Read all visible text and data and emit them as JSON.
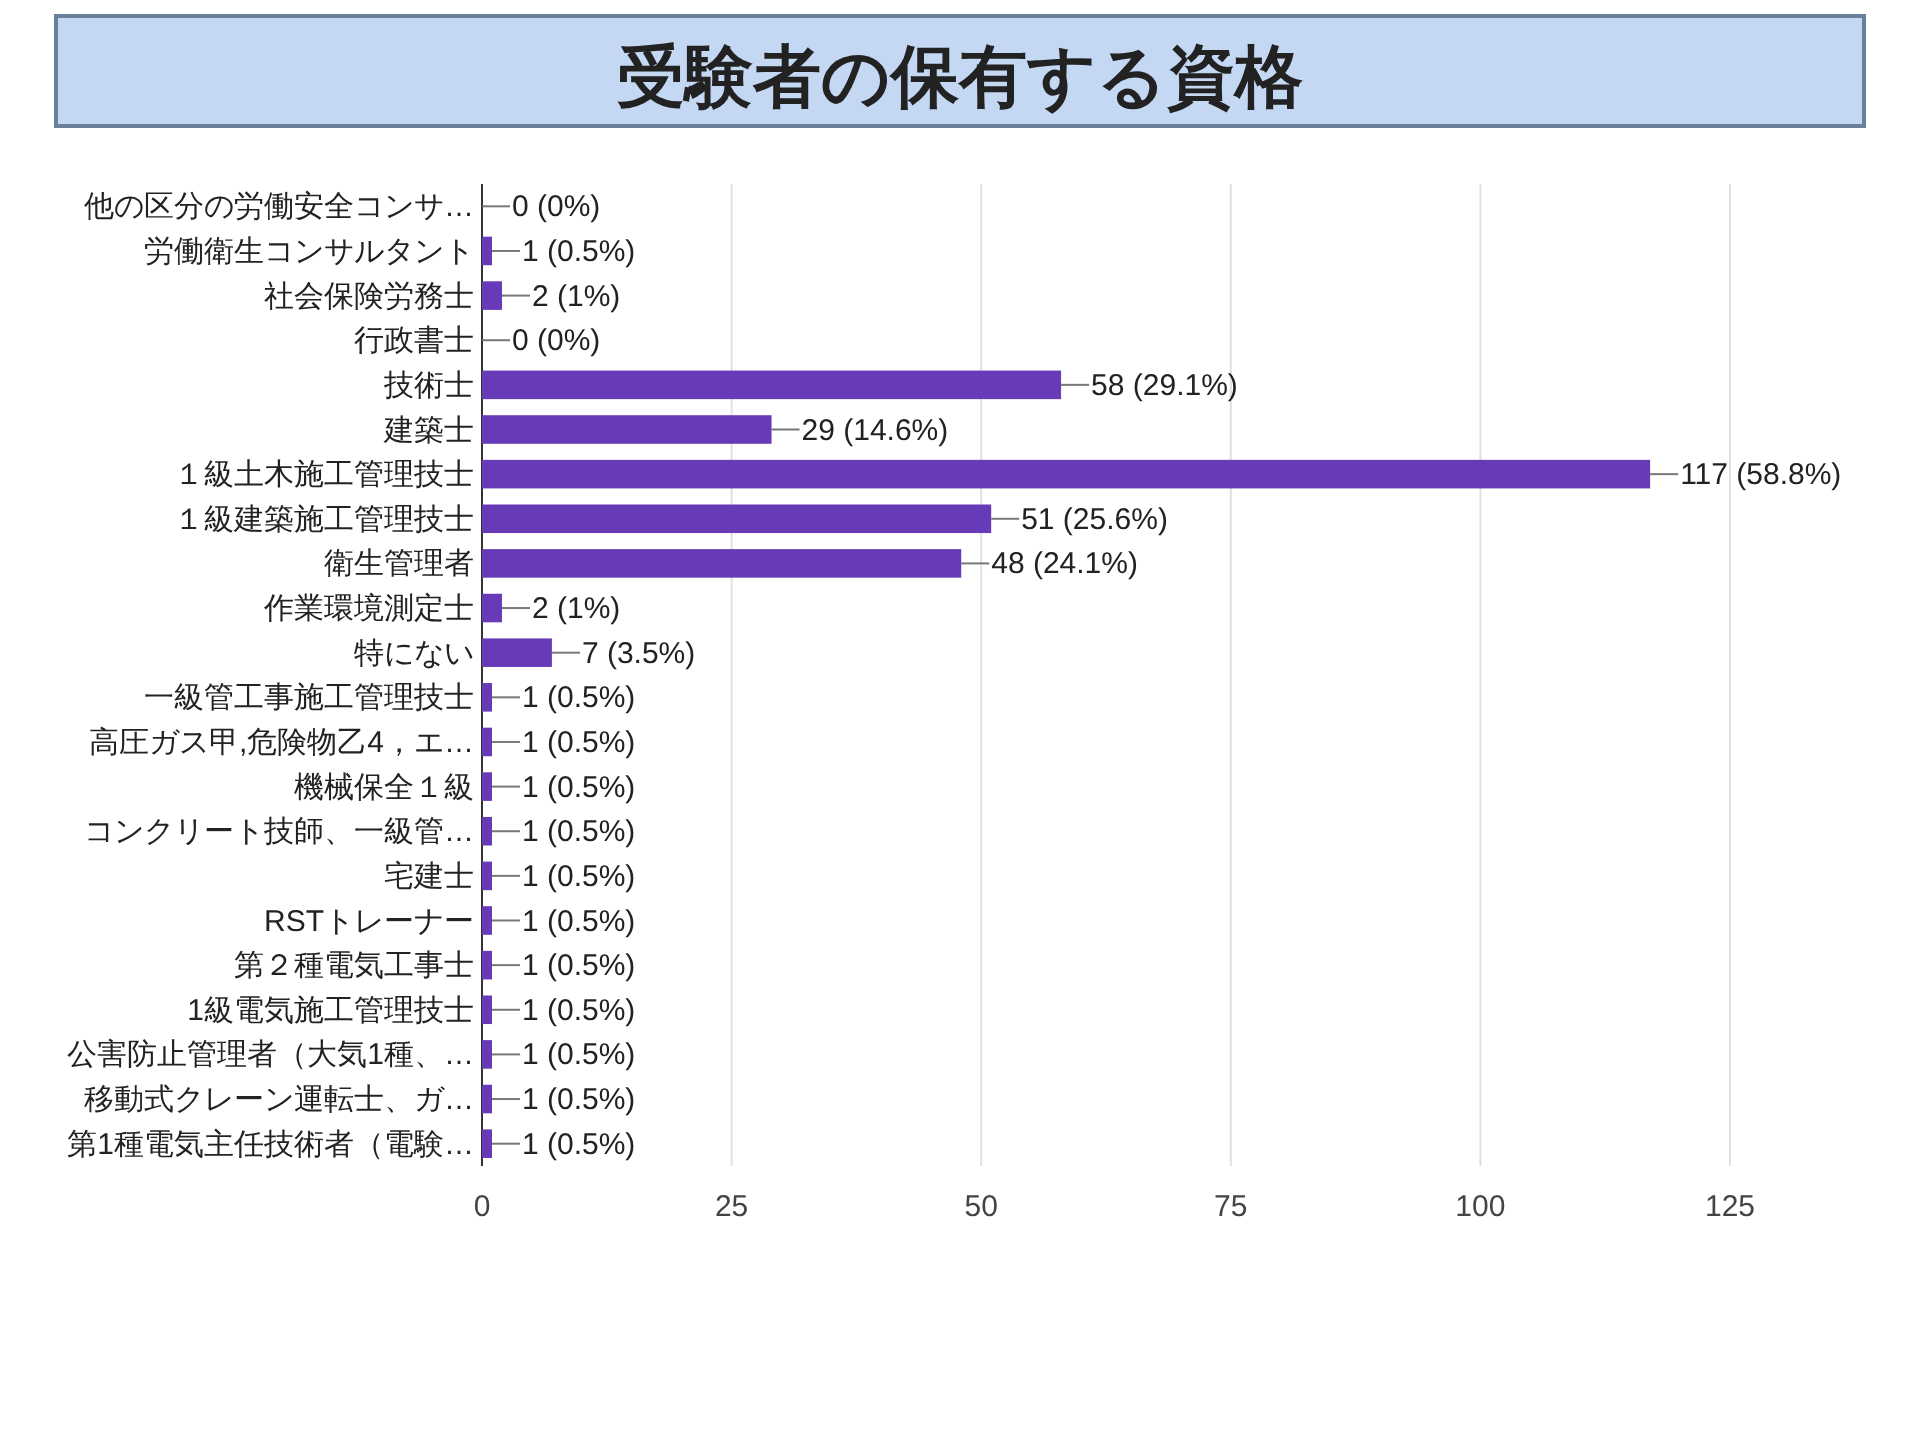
{
  "chart_data": {
    "type": "bar",
    "orientation": "horizontal",
    "title": "受験者の保有する資格",
    "categories": [
      "他の区分の労働安全コンサ…",
      "労働衛生コンサルタント",
      "社会保険労務士",
      "行政書士",
      "技術士",
      "建築士",
      "１級土木施工管理技士",
      "１級建築施工管理技士",
      "衛生管理者",
      "作業環境測定士",
      "特にない",
      "一級管工事施工管理技士",
      "高圧ガス甲,危険物乙4，エ…",
      "機械保全１級",
      "コンクリート技師、一級管…",
      "宅建士",
      "RSTトレーナー",
      "第２種電気工事士",
      "1級電気施工管理技士",
      "公害防止管理者（大気1種、…",
      "移動式クレーン運転士、ガ…",
      "第1種電気主任技術者（電験…"
    ],
    "values": [
      0,
      1,
      2,
      0,
      58,
      29,
      117,
      51,
      48,
      2,
      7,
      1,
      1,
      1,
      1,
      1,
      1,
      1,
      1,
      1,
      1,
      1
    ],
    "value_labels": [
      "0 (0%)",
      "1 (0.5%)",
      "2 (1%)",
      "0 (0%)",
      "58 (29.1%)",
      "29 (14.6%)",
      "117 (58.8%)",
      "51 (25.6%)",
      "48 (24.1%)",
      "2 (1%)",
      "7 (3.5%)",
      "1 (0.5%)",
      "1 (0.5%)",
      "1 (0.5%)",
      "1 (0.5%)",
      "1 (0.5%)",
      "1 (0.5%)",
      "1 (0.5%)",
      "1 (0.5%)",
      "1 (0.5%)",
      "1 (0.5%)",
      "1 (0.5%)"
    ],
    "color": "#673ab7",
    "xlim": [
      0,
      125
    ],
    "xticks": [
      0,
      25,
      50,
      75,
      100,
      125
    ],
    "grid": "x"
  }
}
